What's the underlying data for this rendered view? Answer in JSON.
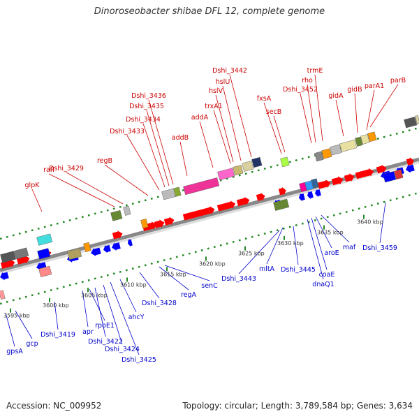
{
  "title": "Dinoroseobacter shibae DFL 12, complete genome",
  "footer": {
    "accession": "Accession: NC_009952",
    "stats": "Topology: circular; Length: 3,789,584 bp; Genes: 3,634"
  },
  "colors": {
    "forward_label": "#cc0000",
    "reverse_label": "#0000cc",
    "forward_gene": "#ff0000",
    "reverse_gene": "#0000ff",
    "backbone": "#888888",
    "grid_dots": "#228822"
  },
  "scale_labels": [
    "3595 kbp",
    "3600 kbp",
    "3605 kbp",
    "3610 kbp",
    "3615 kbp",
    "3620 kbp",
    "3625 kbp",
    "3630 kbp",
    "3635 kbp",
    "3640 kbp"
  ],
  "forward_labels": [
    "glpK",
    "rafI",
    "Dshi_3429",
    "regB",
    "Dshi_3433",
    "Dshi_3434",
    "Dshi_3435",
    "Dshi_3436",
    "addB",
    "addA",
    "trxA1",
    "hslV",
    "hslU",
    "Dshi_3442",
    "fxsA",
    "secB",
    "Dshi_3452",
    "rho",
    "trmE",
    "gidA",
    "gidB",
    "parA1",
    "parB"
  ],
  "reverse_labels": [
    "gpsA",
    "gcp",
    "Dshi_3419",
    "apr",
    "rpoE1",
    "Dshi_3422",
    "Dshi_3424",
    "Dshi_3425",
    "ahcY",
    "Dshi_3428",
    "regA",
    "senC",
    "Dshi_3443",
    "mltA",
    "Dshi_3445",
    "dnaQ1",
    "coaE",
    "aroE",
    "maf",
    "Dshi_3459"
  ]
}
